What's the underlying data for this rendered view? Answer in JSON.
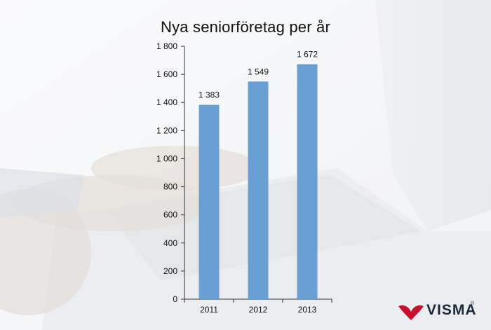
{
  "chart_data": {
    "type": "bar",
    "title": "Nya seniorföretag per år",
    "categories": [
      "2011",
      "2012",
      "2013"
    ],
    "values": [
      1383,
      1549,
      1672
    ],
    "value_labels": [
      "1 383",
      "1 549",
      "1 672"
    ],
    "ylim": [
      0,
      1800
    ],
    "yticks": [
      0,
      200,
      400,
      600,
      800,
      1000,
      1200,
      1400,
      1600,
      1800
    ],
    "ytick_labels": [
      "0",
      "200",
      "400",
      "600",
      "800",
      "1 000",
      "1 200",
      "1 400",
      "1 600",
      "1 800"
    ],
    "xlabel": "",
    "ylabel": "",
    "grid": false,
    "legend": "none",
    "bar_color": "#6a9fd3"
  },
  "brand": {
    "logo_text": "VISMA",
    "registered_mark": "®",
    "logo_color": "#c8102e"
  }
}
